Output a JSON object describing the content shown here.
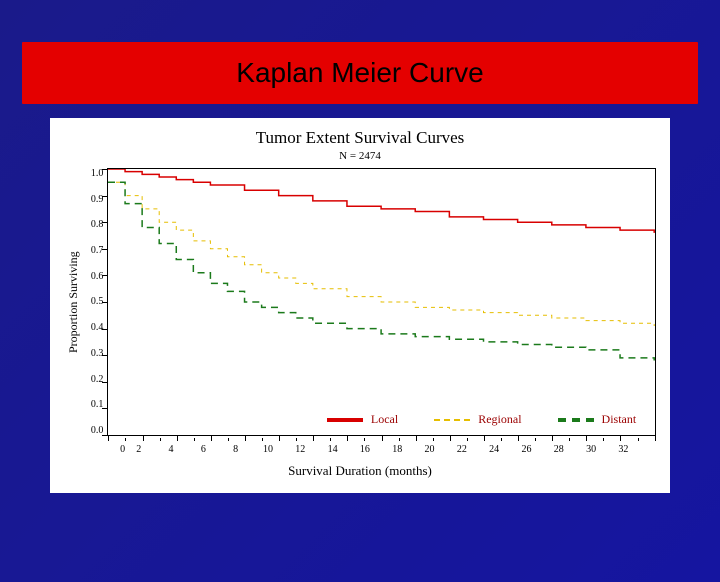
{
  "header": {
    "title": "Kaplan Meier Curve"
  },
  "chart": {
    "type": "line",
    "title": "Tumor Extent Survival Curves",
    "subtitle": "N = 2474",
    "xlabel": "Survival Duration (months)",
    "ylabel": "Proportion Surviving",
    "xlim": [
      0,
      32
    ],
    "ylim": [
      0.0,
      1.0
    ],
    "xtick_step": 2,
    "ytick_step": 0.1,
    "xticks": [
      "0",
      "2",
      "4",
      "6",
      "8",
      "10",
      "12",
      "14",
      "16",
      "18",
      "20",
      "22",
      "24",
      "26",
      "28",
      "30",
      "32"
    ],
    "yticks": [
      "1.0",
      "0.9",
      "0.8",
      "0.7",
      "0.6",
      "0.5",
      "0.4",
      "0.3",
      "0.2",
      "0.1",
      "0.0"
    ],
    "background_color": "#ffffff",
    "border_color": "#000000",
    "title_fontsize": 17,
    "label_fontsize": 12,
    "tick_fontsize": 10,
    "series": [
      {
        "name": "Local",
        "color": "#d80000",
        "line_style": "solid",
        "line_width": 3,
        "x": [
          0,
          1,
          2,
          3,
          4,
          5,
          6,
          8,
          10,
          12,
          14,
          16,
          18,
          20,
          22,
          24,
          26,
          28,
          30,
          32
        ],
        "y": [
          1.0,
          0.99,
          0.98,
          0.97,
          0.96,
          0.95,
          0.94,
          0.92,
          0.9,
          0.88,
          0.86,
          0.85,
          0.84,
          0.82,
          0.81,
          0.8,
          0.79,
          0.78,
          0.77,
          0.76
        ]
      },
      {
        "name": "Regional",
        "color": "#e6be00",
        "line_style": "dashed",
        "line_width": 2,
        "x": [
          0,
          1,
          2,
          3,
          4,
          5,
          6,
          7,
          8,
          9,
          10,
          11,
          12,
          14,
          16,
          18,
          20,
          22,
          24,
          26,
          28,
          30,
          32
        ],
        "y": [
          0.95,
          0.9,
          0.85,
          0.8,
          0.77,
          0.73,
          0.7,
          0.67,
          0.64,
          0.61,
          0.59,
          0.57,
          0.55,
          0.52,
          0.5,
          0.48,
          0.47,
          0.46,
          0.45,
          0.44,
          0.43,
          0.42,
          0.41
        ]
      },
      {
        "name": "Distant",
        "color": "#1b7a1b",
        "line_style": "dashed",
        "line_width": 3,
        "x": [
          0,
          1,
          2,
          3,
          4,
          5,
          6,
          7,
          8,
          9,
          10,
          11,
          12,
          14,
          16,
          18,
          20,
          22,
          24,
          26,
          28,
          30,
          32
        ],
        "y": [
          0.95,
          0.87,
          0.78,
          0.72,
          0.66,
          0.61,
          0.57,
          0.54,
          0.5,
          0.48,
          0.46,
          0.44,
          0.42,
          0.4,
          0.38,
          0.37,
          0.36,
          0.35,
          0.34,
          0.33,
          0.32,
          0.29,
          0.28
        ]
      }
    ],
    "legend": {
      "position": "bottom-inside",
      "items": [
        {
          "label": "Local",
          "color": "#d80000",
          "style": "solid",
          "width": 4
        },
        {
          "label": "Regional",
          "color": "#e6be00",
          "style": "dashed",
          "width": 2
        },
        {
          "label": "Distant",
          "color": "#1b7a1b",
          "style": "dashed",
          "width": 4
        }
      ],
      "label_color": "#9b0000"
    }
  },
  "slide": {
    "background_gradient": [
      "#1a1a8a",
      "#1515a0"
    ]
  }
}
